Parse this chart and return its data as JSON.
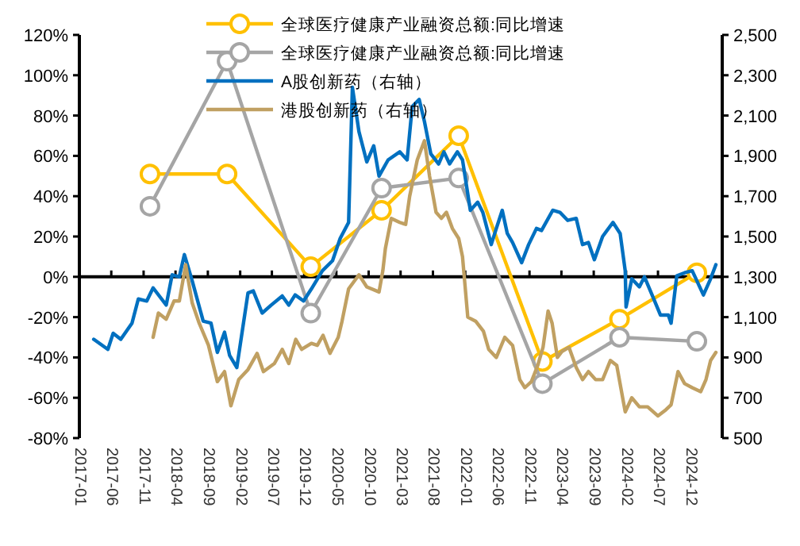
{
  "chart_data": {
    "type": "line",
    "legend": "top",
    "xlim": [
      "2017-01",
      "2025-05"
    ],
    "xticks": [
      "2017-01",
      "2017-06",
      "2017-11",
      "2018-04",
      "2018-09",
      "2019-02",
      "2019-07",
      "2019-12",
      "2020-05",
      "2020-10",
      "2021-03",
      "2021-08",
      "2022-01",
      "2022-06",
      "2022-11",
      "2023-04",
      "2023-09",
      "2024-02",
      "2024-07",
      "2024-12"
    ],
    "ylim": [
      -80,
      120
    ],
    "yticks": [
      {
        "value": -80,
        "label": "-80%"
      },
      {
        "value": -60,
        "label": "-60%"
      },
      {
        "value": -40,
        "label": "-40%"
      },
      {
        "value": -20,
        "label": "-20%"
      },
      {
        "value": 0,
        "label": "0%"
      },
      {
        "value": 20,
        "label": "20%"
      },
      {
        "value": 40,
        "label": "40%"
      },
      {
        "value": 60,
        "label": "60%"
      },
      {
        "value": 80,
        "label": "80%"
      },
      {
        "value": 100,
        "label": "100%"
      },
      {
        "value": 120,
        "label": "120%"
      }
    ],
    "y2lim": [
      500,
      2500
    ],
    "y2ticks": [
      {
        "value": 500,
        "label": "500"
      },
      {
        "value": 700,
        "label": "700"
      },
      {
        "value": 900,
        "label": "900"
      },
      {
        "value": 1100,
        "label": "1,100"
      },
      {
        "value": 1300,
        "label": "1,300"
      },
      {
        "value": 1500,
        "label": "1,500"
      },
      {
        "value": 1700,
        "label": "1,700"
      },
      {
        "value": 1900,
        "label": "1,900"
      },
      {
        "value": 2100,
        "label": "2,100"
      },
      {
        "value": 2300,
        "label": "2,300"
      },
      {
        "value": 2500,
        "label": "2,500"
      }
    ],
    "series": [
      {
        "name": "全球医疗健康产业融资总额:同比增速",
        "color": "#ffc000",
        "marker": "circle",
        "x": [
          "2017-12",
          "2018-12",
          "2020-01",
          "2020-12",
          "2021-12",
          "2023-01",
          "2024-01",
          "2025-01"
        ],
        "values": [
          51,
          51,
          5,
          33,
          70,
          -42,
          -21,
          2
        ]
      },
      {
        "name": "全球医疗健康产业融资总额:同比增速",
        "color": "#a5a5a5",
        "marker": "circle",
        "x": [
          "2017-12",
          "2018-12",
          "2020-01",
          "2020-12",
          "2021-12",
          "2023-01",
          "2024-01",
          "2025-01"
        ],
        "values": [
          35,
          107,
          -18,
          44,
          49,
          -53,
          -30,
          -32
        ]
      },
      {
        "name": "A股创新药（右轴）",
        "color": "#0070c0",
        "axis": "y2",
        "marker": "none",
        "x": [
          "2017-03-10",
          "2017-05-16",
          "2017-06-10",
          "2017-07-16",
          "2017-09-07",
          "2017-10-07",
          "2017-11-16",
          "2017-12-16",
          "2018-02-16",
          "2018-03-16",
          "2018-04-19",
          "2018-05-13",
          "2018-06-19",
          "2018-08-10",
          "2018-09-16",
          "2018-10-16",
          "2018-11-19",
          "2018-12-13",
          "2019-01-16",
          "2019-03-10",
          "2019-04-04",
          "2019-05-16",
          "2019-06-28",
          "2019-08-19",
          "2019-09-19",
          "2019-10-19",
          "2019-11-28",
          "2020-01-04",
          "2020-02-25",
          "2020-04-13",
          "2020-05-19",
          "2020-06-28",
          "2020-07-16",
          "2020-08-16",
          "2020-09-22",
          "2020-10-25",
          "2020-11-19",
          "2021-01-01",
          "2021-02-25",
          "2021-04-01",
          "2021-04-25",
          "2021-05-28",
          "2021-06-22",
          "2021-07-22",
          "2021-08-28",
          "2021-09-22",
          "2021-10-19",
          "2021-11-25",
          "2021-12-19",
          "2022-01-25",
          "2022-03-01",
          "2022-03-25",
          "2022-05-04",
          "2022-05-28",
          "2022-06-25",
          "2022-07-19",
          "2022-08-13",
          "2022-09-25",
          "2022-10-28",
          "2022-12-04",
          "2022-12-28",
          "2023-02-19",
          "2023-03-25",
          "2023-05-01",
          "2023-06-10",
          "2023-07-10",
          "2023-08-07",
          "2023-09-04",
          "2023-10-13",
          "2023-12-01",
          "2024-01-04",
          "2024-01-28",
          "2024-02-01",
          "2024-02-28",
          "2024-04-04",
          "2024-04-28",
          "2024-06-07",
          "2024-07-13",
          "2024-08-19",
          "2024-09-01",
          "2024-09-28",
          "2024-11-04",
          "2024-12-10",
          "2025-02-01",
          "2025-03-07",
          "2025-04-01"
        ],
        "values": [
          990,
          940,
          1020,
          990,
          1070,
          1190,
          1180,
          1245,
          1160,
          1310,
          1300,
          1410,
          1280,
          1080,
          1070,
          925,
          1025,
          910,
          850,
          1220,
          1230,
          1120,
          1160,
          1205,
          1160,
          1210,
          1180,
          1240,
          1330,
          1380,
          1490,
          1570,
          2240,
          2020,
          1870,
          1950,
          1800,
          1880,
          1920,
          1880,
          2145,
          2180,
          2070,
          1910,
          1860,
          1920,
          1860,
          1920,
          1880,
          1630,
          1670,
          1620,
          1460,
          1540,
          1630,
          1515,
          1470,
          1370,
          1460,
          1540,
          1530,
          1630,
          1620,
          1580,
          1590,
          1460,
          1470,
          1385,
          1500,
          1570,
          1515,
          1330,
          1150,
          1290,
          1250,
          1300,
          1200,
          1110,
          1110,
          1070,
          1305,
          1320,
          1330,
          1210,
          1290,
          1360
        ]
      },
      {
        "name": "港股创新药（右轴）",
        "color": "#c0a062",
        "axis": "y2",
        "marker": "none",
        "x": [
          "2017-12-16",
          "2018-01-10",
          "2018-02-16",
          "2018-03-25",
          "2018-04-19",
          "2018-05-19",
          "2018-06-19",
          "2018-07-22",
          "2018-09-04",
          "2018-10-16",
          "2018-11-19",
          "2018-12-19",
          "2019-01-25",
          "2019-03-10",
          "2019-04-22",
          "2019-05-22",
          "2019-07-13",
          "2019-08-19",
          "2019-09-19",
          "2019-10-22",
          "2019-11-19",
          "2020-01-04",
          "2020-02-01",
          "2020-02-28",
          "2020-04-01",
          "2020-05-10",
          "2020-05-28",
          "2020-06-28",
          "2020-08-16",
          "2020-09-22",
          "2020-11-19",
          "2020-12-07",
          "2020-12-19",
          "2021-01-16",
          "2021-02-25",
          "2021-03-25",
          "2021-04-13",
          "2021-05-19",
          "2021-06-22",
          "2021-07-16",
          "2021-08-16",
          "2021-09-10",
          "2021-10-04",
          "2021-11-01",
          "2021-12-01",
          "2021-12-19",
          "2022-01-13",
          "2022-02-19",
          "2022-03-28",
          "2022-04-22",
          "2022-05-28",
          "2022-07-07",
          "2022-08-13",
          "2022-09-16",
          "2022-10-10",
          "2022-11-10",
          "2022-12-10",
          "2023-01-04",
          "2023-01-28",
          "2023-02-16",
          "2023-03-13",
          "2023-04-04",
          "2023-05-07",
          "2023-06-10",
          "2023-07-10",
          "2023-08-07",
          "2023-09-10",
          "2023-10-13",
          "2023-11-19",
          "2023-12-19",
          "2024-01-28",
          "2024-02-28",
          "2024-04-04",
          "2024-05-13",
          "2024-07-01",
          "2024-08-07",
          "2024-09-01",
          "2024-10-04",
          "2024-11-04",
          "2024-12-10",
          "2025-01-19",
          "2025-02-13",
          "2025-03-07",
          "2025-04-01"
        ],
        "values": [
          1000,
          1120,
          1090,
          1180,
          1180,
          1360,
          1170,
          1070,
          960,
          780,
          830,
          660,
          790,
          840,
          920,
          830,
          870,
          940,
          870,
          990,
          940,
          970,
          960,
          1010,
          920,
          1000,
          1080,
          1240,
          1310,
          1250,
          1225,
          1330,
          1440,
          1590,
          1570,
          1560,
          1700,
          1880,
          1975,
          1800,
          1620,
          1590,
          1620,
          1540,
          1490,
          1400,
          1100,
          1080,
          1030,
          940,
          900,
          1000,
          960,
          790,
          750,
          780,
          860,
          950,
          1130,
          1070,
          900,
          930,
          950,
          850,
          790,
          830,
          790,
          790,
          885,
          860,
          630,
          700,
          655,
          655,
          610,
          640,
          665,
          830,
          770,
          750,
          730,
          790,
          885,
          925
        ]
      }
    ]
  }
}
